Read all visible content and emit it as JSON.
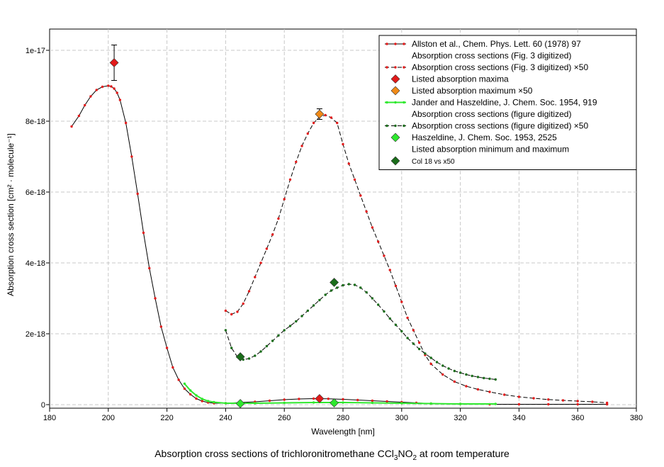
{
  "chart_data": {
    "type": "line",
    "xlabel": "Wavelength [nm]",
    "ylabel": "Absorption cross section [cm² · molecule⁻¹]",
    "xlim": [
      180,
      380
    ],
    "ylim": [
      -1e-19,
      1.06e-17
    ],
    "x_ticks": [
      180,
      200,
      220,
      240,
      260,
      280,
      300,
      320,
      340,
      360,
      380
    ],
    "y_ticks": [
      0,
      2e-18,
      4e-18,
      6e-18,
      8e-18,
      1e-17
    ],
    "y_tick_labels": [
      "0",
      "2e-18",
      "4e-18",
      "6e-18",
      "8e-18",
      "1e-17"
    ],
    "grid": true,
    "legend_position": "top-right",
    "caption": {
      "prefix": "Absorption cross sections of trichloronitromethane CCl",
      "sub1": "3",
      "middle": "NO",
      "sub2": "2",
      "suffix": " at room temperature"
    },
    "colors": {
      "red": "#e21a1a",
      "orange": "#f08a17",
      "light_green": "#2ee82e",
      "dark_green": "#1a6d1a",
      "line": "#000000"
    },
    "legend": [
      {
        "label": "Allston et al., Chem. Phys. Lett. 60 (1978) 97",
        "type": "solid",
        "color": "#e21a1a"
      },
      {
        "label": "Absorption cross sections (Fig. 3 digitized)",
        "type": "none",
        "color": "#e21a1a"
      },
      {
        "label": "Absorption cross sections (Fig. 3 digitized) ×50",
        "type": "dashed",
        "color": "#e21a1a"
      },
      {
        "label": "Listed absorption maxima",
        "type": "diamond",
        "color": "#e21a1a"
      },
      {
        "label": "Listed absorption maximum ×50",
        "type": "diamond",
        "color": "#f08a17"
      },
      {
        "label": "Jander and Haszeldine, J. Chem. Soc. 1954, 919",
        "type": "solid",
        "color": "#2ee82e"
      },
      {
        "label": "Absorption cross sections (figure digitized)",
        "type": "none",
        "color": "#2ee82e"
      },
      {
        "label": "Absorption cross sections (figure digitized) ×50",
        "type": "dashed",
        "color": "#1a6d1a"
      },
      {
        "label": "Haszeldine, J. Chem. Soc. 1953, 2525",
        "type": "diamond",
        "color": "#2ee82e"
      },
      {
        "label": "Listed absorption minimum and maximum",
        "type": "none",
        "color": "#2ee82e"
      },
      {
        "label": "Col 18 vs   x50",
        "type": "diamond",
        "color": "#1a6d1a",
        "small": true
      }
    ],
    "series": [
      {
        "legend_index": 0,
        "style": "solid",
        "color": "#e21a1a",
        "x": [
          187.5,
          190,
          192,
          194,
          196,
          198,
          200,
          201,
          202,
          203,
          204,
          206,
          208,
          210,
          212,
          214,
          216,
          218,
          220,
          222,
          224,
          226,
          228,
          230,
          232,
          234,
          236,
          240,
          245,
          250,
          255,
          260,
          265,
          270,
          275,
          280,
          285,
          290,
          295,
          300,
          305,
          310,
          320,
          330,
          340,
          350,
          360,
          370
        ],
        "y": [
          7.85e-18,
          8.15e-18,
          8.45e-18,
          8.7e-18,
          8.88e-18,
          8.97e-18,
          9e-18,
          8.98e-18,
          8.92e-18,
          8.8e-18,
          8.6e-18,
          7.95e-18,
          7e-18,
          5.95e-18,
          4.85e-18,
          3.85e-18,
          3e-18,
          2.2e-18,
          1.6e-18,
          1.05e-18,
          7e-19,
          4.5e-19,
          2.9e-19,
          1.7e-19,
          1e-19,
          6e-20,
          4e-20,
          4e-20,
          6e-20,
          8e-20,
          1.1e-19,
          1.4e-19,
          1.6e-19,
          1.7e-19,
          1.65e-19,
          1.5e-19,
          1.3e-19,
          1.1e-19,
          9e-20,
          7e-20,
          5e-20,
          3e-20,
          2e-20,
          1e-20,
          1e-20,
          1e-20,
          1e-20,
          1e-20
        ]
      },
      {
        "legend_index": 2,
        "style": "dashed",
        "color": "#e21a1a",
        "x": [
          240,
          242,
          244,
          246,
          248,
          250,
          252,
          254,
          256,
          258,
          260,
          262,
          264,
          266,
          268,
          270,
          272,
          274,
          276,
          278,
          280,
          282,
          284,
          286,
          288,
          290,
          292,
          294,
          296,
          298,
          300,
          302,
          304,
          306,
          308,
          310,
          314,
          318,
          322,
          326,
          330,
          335,
          340,
          345,
          350,
          355,
          360,
          365,
          370
        ],
        "y": [
          2.65e-18,
          2.55e-18,
          2.62e-18,
          2.85e-18,
          3.2e-18,
          3.6e-18,
          4e-18,
          4.4e-18,
          4.8e-18,
          5.25e-18,
          5.8e-18,
          6.35e-18,
          6.85e-18,
          7.3e-18,
          7.65e-18,
          7.95e-18,
          8.12e-18,
          8.17e-18,
          8.1e-18,
          7.95e-18,
          7.35e-18,
          6.8e-18,
          6.35e-18,
          5.9e-18,
          5.45e-18,
          5e-18,
          4.6e-18,
          4.2e-18,
          3.8e-18,
          3.35e-18,
          2.9e-18,
          2.45e-18,
          2.1e-18,
          1.75e-18,
          1.4e-18,
          1.15e-18,
          8.5e-19,
          6.5e-19,
          5.2e-19,
          4.3e-19,
          3.6e-19,
          2.8e-19,
          2.2e-19,
          1.8e-19,
          1.45e-19,
          1.2e-19,
          1e-19,
          8e-20,
          5e-20
        ]
      },
      {
        "legend_index": 5,
        "style": "solid",
        "color": "#2ee82e",
        "x": [
          226,
          228,
          230,
          232,
          234,
          236,
          240,
          245,
          250,
          260,
          270,
          280,
          290,
          300,
          310,
          320,
          332
        ],
        "y": [
          5.9e-19,
          4e-19,
          2.6e-19,
          1.6e-19,
          1e-19,
          7e-20,
          4e-20,
          4e-20,
          4e-20,
          5e-20,
          6e-20,
          6e-20,
          5e-20,
          4e-20,
          3e-20,
          2e-20,
          2e-20
        ]
      },
      {
        "legend_index": 7,
        "style": "dashed",
        "color": "#1a6d1a",
        "x": [
          240,
          242,
          244,
          246,
          248,
          250,
          252,
          254,
          256,
          258,
          260,
          262,
          264,
          266,
          268,
          270,
          272,
          274,
          276,
          278,
          280,
          282,
          284,
          286,
          288,
          290,
          292,
          294,
          296,
          298,
          300,
          302,
          304,
          306,
          308,
          310,
          312,
          314,
          316,
          318,
          320,
          322,
          324,
          326,
          328,
          330,
          332
        ],
        "y": [
          2.1e-18,
          1.6e-18,
          1.35e-18,
          1.27e-18,
          1.3e-18,
          1.38e-18,
          1.5e-18,
          1.65e-18,
          1.8e-18,
          1.95e-18,
          2.1e-18,
          2.22e-18,
          2.35e-18,
          2.5e-18,
          2.65e-18,
          2.8e-18,
          2.95e-18,
          3.1e-18,
          3.22e-18,
          3.3e-18,
          3.37e-18,
          3.4e-18,
          3.38e-18,
          3.3e-18,
          3.17e-18,
          3e-18,
          2.82e-18,
          2.63e-18,
          2.43e-18,
          2.25e-18,
          2.07e-18,
          1.88e-18,
          1.72e-18,
          1.57e-18,
          1.44e-18,
          1.32e-18,
          1.2e-18,
          1.1e-18,
          1.02e-18,
          9.5e-19,
          9e-19,
          8.5e-19,
          8.1e-19,
          7.8e-19,
          7.5e-19,
          7.3e-19,
          7.1e-19
        ]
      }
    ],
    "markers": [
      {
        "legend_index": 3,
        "color": "#e21a1a",
        "x": 202,
        "y": 9.65e-18,
        "err": 5e-19
      },
      {
        "legend_index": 3,
        "color": "#e21a1a",
        "x": 272,
        "y": 1.7e-19
      },
      {
        "legend_index": 4,
        "color": "#f08a17",
        "x": 272,
        "y": 8.2e-18,
        "err": 1.5e-19
      },
      {
        "legend_index": 8,
        "color": "#2ee82e",
        "x": 245,
        "y": 3e-20
      },
      {
        "legend_index": 8,
        "color": "#2ee82e",
        "x": 277,
        "y": 5e-20
      },
      {
        "legend_index": 10,
        "color": "#1a6d1a",
        "x": 245,
        "y": 1.35e-18
      },
      {
        "legend_index": 10,
        "color": "#1a6d1a",
        "x": 277,
        "y": 3.45e-18
      }
    ]
  }
}
